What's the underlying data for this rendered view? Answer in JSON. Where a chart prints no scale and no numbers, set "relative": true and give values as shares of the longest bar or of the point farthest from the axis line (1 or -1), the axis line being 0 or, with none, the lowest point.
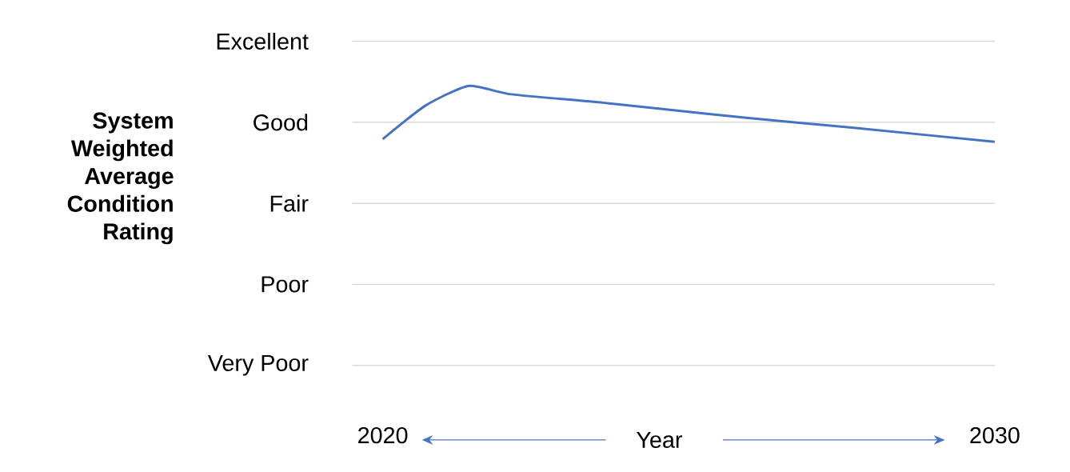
{
  "chart_data": {
    "type": "line",
    "xlabel": "Year",
    "annotations": [
      "System Weighted Average Condition Rating"
    ],
    "relative": true,
    "x": [
      2020,
      2020.7,
      2021.4,
      2022.1,
      2023.6,
      2025.3,
      2026.7,
      2027.7,
      2030
    ],
    "series": [
      {
        "color": "#4472c4",
        "values": [
          0.81,
          0.93,
          1,
          0.97,
          0.94,
          0.9,
          0.87,
          0.85,
          0.8
        ]
      }
    ],
    "xlim": [
      2019.5,
      2030
    ],
    "xticks": [
      2020,
      2030
    ],
    "ref_lines": [
      {
        "axis": "y",
        "value": 0,
        "label": "Very Poor",
        "color": "#d9d9d9"
      },
      {
        "axis": "y",
        "value": 0.29,
        "label": "Poor",
        "color": "#d9d9d9"
      },
      {
        "axis": "y",
        "value": 0.58,
        "label": "Fair",
        "color": "#d9d9d9"
      },
      {
        "axis": "y",
        "value": 0.87,
        "label": "Good",
        "color": "#d9d9d9"
      },
      {
        "axis": "y",
        "value": 1.16,
        "label": "Excellent",
        "color": "#d9d9d9"
      }
    ]
  }
}
